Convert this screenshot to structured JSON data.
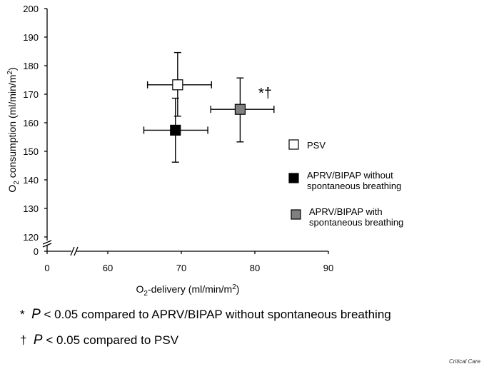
{
  "chart_data": {
    "type": "scatter",
    "title": "",
    "xlabel": "O2-delivery (ml/min/m2)",
    "ylabel": "O2 consumption (ml/min/m2)",
    "xlim": [
      0,
      90
    ],
    "ylim": [
      120,
      200
    ],
    "axis_break": {
      "x": "between 0 and 60",
      "y": "between 0 and 120"
    },
    "x_ticks": [
      "0",
      "60",
      "70",
      "80",
      "90"
    ],
    "y_ticks": [
      "0",
      "120",
      "130",
      "140",
      "150",
      "160",
      "170",
      "180",
      "190",
      "200"
    ],
    "grid": false,
    "legend_placement": "right",
    "series": [
      {
        "name": "PSV",
        "x": 69.5,
        "y": 173.3,
        "x_err": [
          65.4,
          74.1
        ],
        "y_err": [
          162.3,
          184.6
        ],
        "color": "#ffffff"
      },
      {
        "name": "APRV/BIPAP without spontaneous breathing",
        "x": 69.2,
        "y": 157.4,
        "x_err": [
          64.9,
          73.6
        ],
        "y_err": [
          146.2,
          168.6
        ],
        "color": "#000000"
      },
      {
        "name": "APRV/BIPAP with spontaneous breathing",
        "x": 78.0,
        "y": 164.7,
        "x_err": [
          74.0,
          82.6
        ],
        "y_err": [
          153.3,
          175.7
        ],
        "color": "#808080"
      }
    ],
    "annotations": [
      "*†"
    ]
  },
  "legend": {
    "psv": "PSV",
    "without_1": "APRV/BIPAP without",
    "without_2": "spontaneous breathing",
    "with_1": "APRV/BIPAP with",
    "with_2": "spontaneous breathing"
  },
  "notes": {
    "n1_sym": "*",
    "n1_p": "P",
    "n1_text": " < 0.05 compared to APRV/BIPAP without spontaneous breathing",
    "n2_sym": "†",
    "n2_p": "P",
    "n2_text": " < 0.05 compared to  PSV"
  },
  "credit": "Critical Care"
}
